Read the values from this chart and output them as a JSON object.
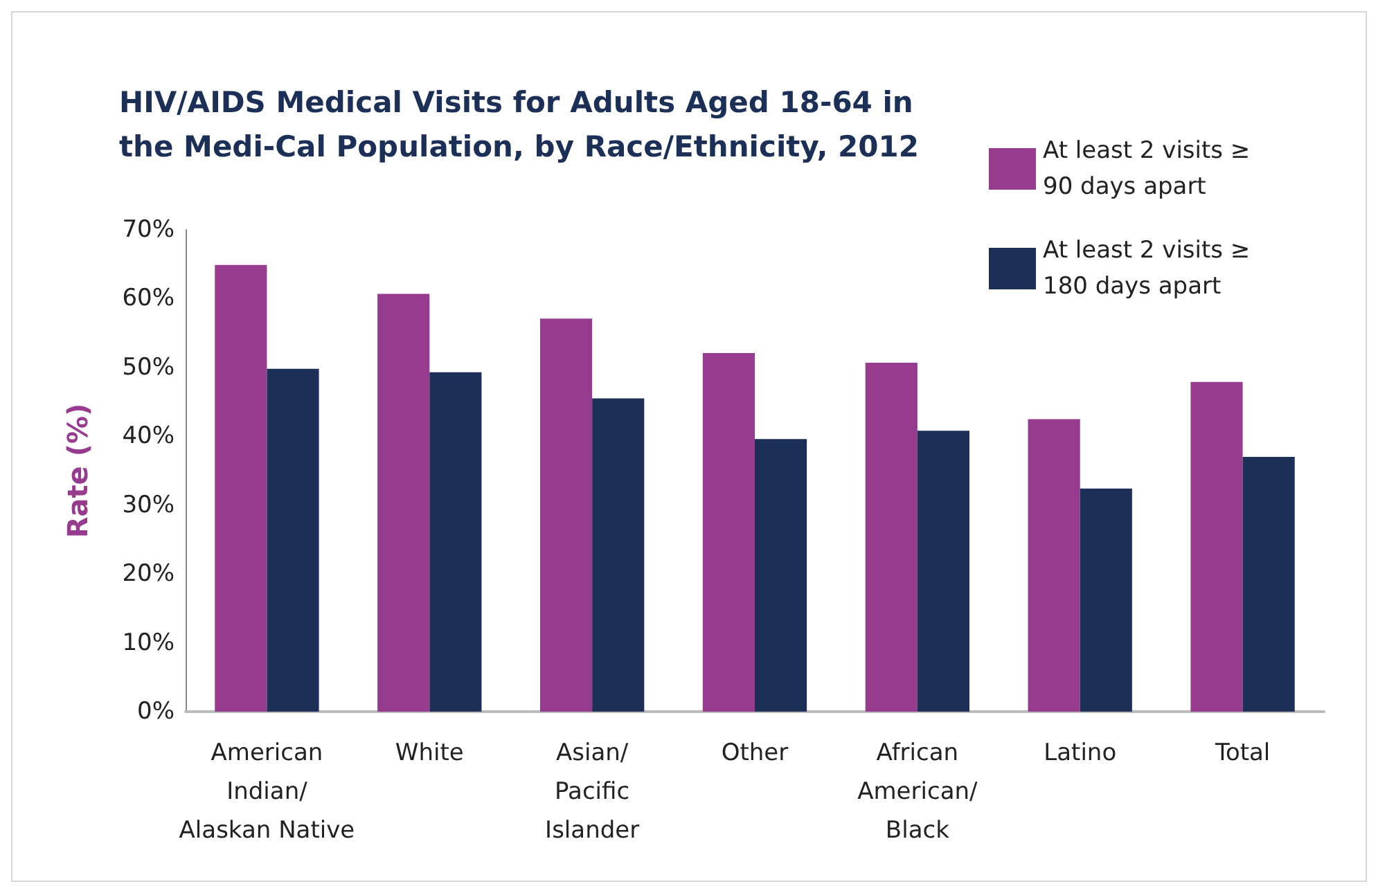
{
  "chart_data": {
    "type": "bar",
    "title": "HIV/AIDS Medical Visits for Adults Aged 18-64 in\nthe Medi-Cal Population, by Race/Ethnicity, 2012",
    "ylabel": "Rate (%)",
    "categories": [
      "American\nIndian/\nAlaskan Native",
      "White",
      "Asian/\nPacific\nIslander",
      "Other",
      "African\nAmerican/\nBlack",
      "Latino",
      "Total"
    ],
    "series": [
      {
        "name": "At least 2 visits ≥\n90 days apart",
        "color": "#973b8e",
        "values": [
          64.9,
          60.7,
          57.1,
          52.1,
          50.7,
          42.5,
          47.9
        ]
      },
      {
        "name": "At least 2 visits ≥\n180 days apart",
        "color": "#1b2f57",
        "values": [
          49.8,
          49.3,
          45.5,
          39.6,
          40.8,
          32.4,
          37.0
        ]
      }
    ],
    "ylim": [
      0,
      70
    ],
    "yticks": [
      {
        "value": 0,
        "label": "0%"
      },
      {
        "value": 10,
        "label": "10%"
      },
      {
        "value": 20,
        "label": "20%"
      },
      {
        "value": 30,
        "label": "30%"
      },
      {
        "value": 40,
        "label": "40%"
      },
      {
        "value": 50,
        "label": "50%"
      },
      {
        "value": 60,
        "label": "60%"
      },
      {
        "value": 70,
        "label": "70%"
      }
    ],
    "grid": false,
    "legend": "top right"
  }
}
